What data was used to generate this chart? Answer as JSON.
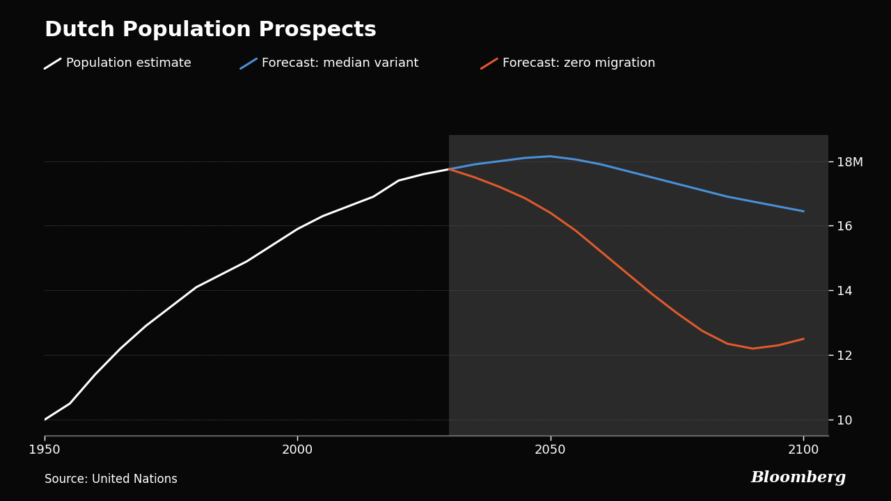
{
  "title": "Dutch Population Prospects",
  "source": "Source: United Nations",
  "bloomberg": "Bloomberg",
  "background_color": "#080808",
  "forecast_bg_color": "#2a2a2a",
  "legend": [
    {
      "label": "Population estimate",
      "color": "#ffffff"
    },
    {
      "label": "Forecast: median variant",
      "color": "#4a90d9"
    },
    {
      "label": "Forecast: zero migration",
      "color": "#e05a2b"
    }
  ],
  "xlim": [
    1950,
    2105
  ],
  "ylim": [
    9.5,
    18.8
  ],
  "yticks": [
    10,
    12,
    14,
    16,
    18
  ],
  "ytick_labels": [
    "10",
    "12",
    "14",
    "16",
    "18M"
  ],
  "xticks": [
    1950,
    2000,
    2050,
    2100
  ],
  "forecast_start": 2030,
  "historical": {
    "years": [
      1950,
      1955,
      1960,
      1965,
      1970,
      1975,
      1980,
      1985,
      1990,
      1995,
      2000,
      2005,
      2010,
      2015,
      2020,
      2025,
      2030
    ],
    "values": [
      10.0,
      10.5,
      11.4,
      12.2,
      12.9,
      13.5,
      14.1,
      14.5,
      14.9,
      15.4,
      15.9,
      16.3,
      16.6,
      16.9,
      17.4,
      17.6,
      17.75
    ]
  },
  "median_variant": {
    "years": [
      2030,
      2035,
      2040,
      2045,
      2050,
      2055,
      2060,
      2065,
      2070,
      2075,
      2080,
      2085,
      2090,
      2095,
      2100
    ],
    "values": [
      17.75,
      17.9,
      18.0,
      18.1,
      18.15,
      18.05,
      17.9,
      17.7,
      17.5,
      17.3,
      17.1,
      16.9,
      16.75,
      16.6,
      16.45
    ]
  },
  "zero_migration": {
    "years": [
      2030,
      2035,
      2040,
      2045,
      2050,
      2055,
      2060,
      2065,
      2070,
      2075,
      2080,
      2085,
      2090,
      2095,
      2100
    ],
    "values": [
      17.75,
      17.5,
      17.2,
      16.85,
      16.4,
      15.85,
      15.2,
      14.55,
      13.9,
      13.3,
      12.75,
      12.35,
      12.2,
      12.3,
      12.5
    ]
  },
  "title_fontsize": 22,
  "legend_fontsize": 13,
  "tick_fontsize": 13,
  "source_fontsize": 12
}
